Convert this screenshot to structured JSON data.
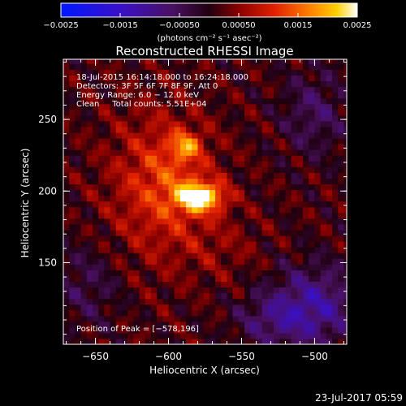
{
  "chart_data": {
    "type": "heatmap",
    "title": "Reconstructed RHESSI Image",
    "xlabel": "Heliocentric X (arcsec)",
    "ylabel": "Heliocentric Y (arcsec)",
    "xlim": [
      -672,
      -478
    ],
    "ylim": [
      93,
      292
    ],
    "x_ticks": [
      -650,
      -600,
      -550,
      -500
    ],
    "x_tick_labels": [
      "−650",
      "−600",
      "−550",
      "−500"
    ],
    "y_ticks": [
      150,
      200,
      250
    ],
    "y_tick_labels": [
      "150",
      "200",
      "250"
    ],
    "colorbar": {
      "range": [
        -0.0025,
        0.0025
      ],
      "ticks": [
        -0.0025,
        -0.0015,
        -0.0005,
        0.0005,
        0.0015,
        0.0025
      ],
      "tick_labels": [
        "−0.0025",
        "−0.0015",
        "−0.00050",
        "0.00050",
        "0.0015",
        "0.0025"
      ],
      "unit_label": "(photons cm⁻² s⁻¹ asec⁻²)",
      "colormap": "blue-purple-red-yellow-white"
    },
    "annotations": {
      "time_range": "18-Jul-2015 16:14:18.000 to 16:24:18.000",
      "detectors": "Detectors: 3F 5F 6F 7F 8F 9F, Att 0",
      "energy_range": "Energy Range: 6.0 − 12.0 keV",
      "clean_counts": "Clean     Total counts: 5.51E+04",
      "peak": "Position of Peak = [−578,196]"
    },
    "peak_position": [
      -578,
      196
    ],
    "peak_value": 0.0025,
    "grid": false
  },
  "footer": {
    "timestamp": "23-Jul-2017 05:59"
  }
}
